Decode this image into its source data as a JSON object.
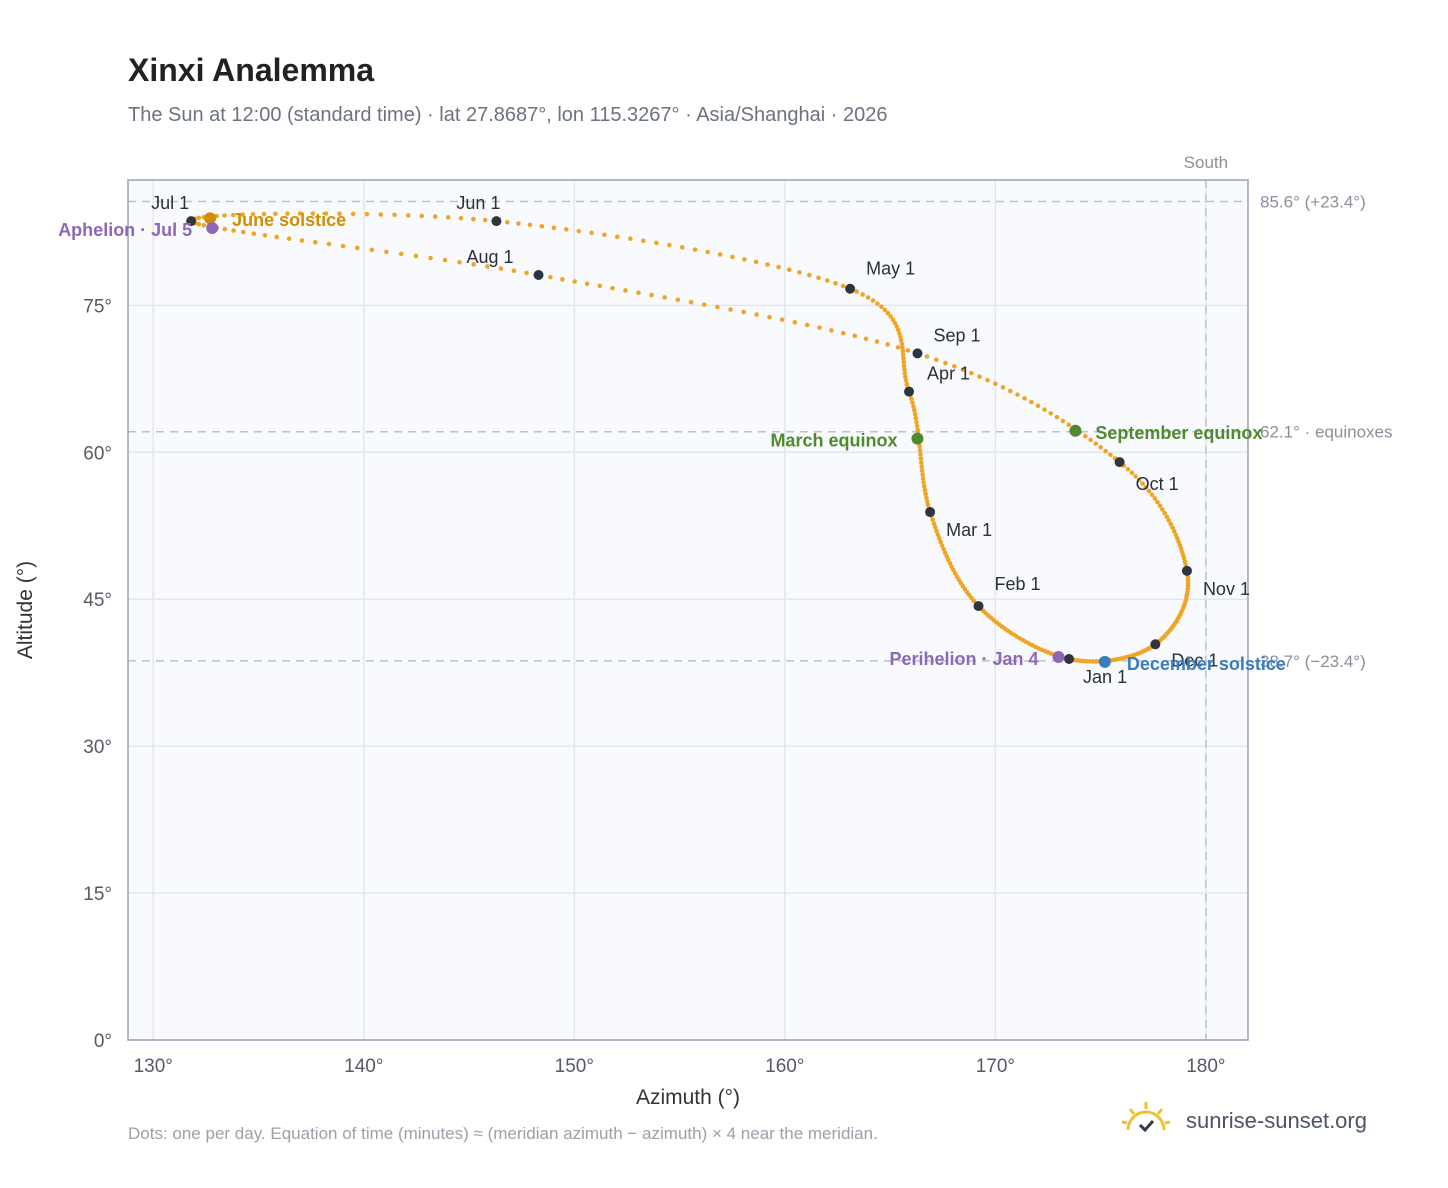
{
  "header": {
    "title": "Xinxi Analemma",
    "subtitle": "The Sun at 12:00 (standard time) · lat 27.8687°, lon 115.3267° · Asia/Shanghai · 2026"
  },
  "footer": {
    "note": "Dots: one per day. Equation of time (minutes) ≈ (meridian azimuth − azimuth) × 4 near the meridian.",
    "brand": "sunrise-sunset.org",
    "brand_icon": "sun-logo-icon"
  },
  "chart_data": {
    "type": "scatter",
    "xlabel": "Azimuth (°)",
    "ylabel": "Altitude (°)",
    "xlim": [
      128.8,
      182
    ],
    "ylim": [
      0,
      87.8
    ],
    "xticks": [
      130,
      140,
      150,
      160,
      170,
      180
    ],
    "yticks": [
      0,
      15,
      30,
      45,
      60,
      75
    ],
    "x_tick_labels": [
      "130°",
      "140°",
      "150°",
      "160°",
      "170°",
      "180°"
    ],
    "y_tick_labels": [
      "0°",
      "15°",
      "30°",
      "45°",
      "60°",
      "75°"
    ],
    "grid": true,
    "south_line": {
      "azimuth": 180,
      "label": "South"
    },
    "reference_lines": [
      {
        "altitude": 85.6,
        "label": "85.6° (+23.4°)"
      },
      {
        "altitude": 62.1,
        "label": "62.1° · equinoxes"
      },
      {
        "altitude": 38.7,
        "label": "38.7° (−23.4°)"
      }
    ],
    "series_color": "#f0a526",
    "month_markers": [
      {
        "label": "Jan 1",
        "azimuth": 173.5,
        "altitude": 38.9
      },
      {
        "label": "Feb 1",
        "azimuth": 169.2,
        "altitude": 44.3
      },
      {
        "label": "Mar 1",
        "azimuth": 166.9,
        "altitude": 53.9
      },
      {
        "label": "Apr 1",
        "azimuth": 165.9,
        "altitude": 66.2
      },
      {
        "label": "May 1",
        "azimuth": 163.1,
        "altitude": 76.7
      },
      {
        "label": "Jun 1",
        "azimuth": 146.3,
        "altitude": 83.6
      },
      {
        "label": "Jul 1",
        "azimuth": 131.8,
        "altitude": 83.6
      },
      {
        "label": "Aug 1",
        "azimuth": 148.3,
        "altitude": 78.1
      },
      {
        "label": "Sep 1",
        "azimuth": 166.3,
        "altitude": 70.1
      },
      {
        "label": "Oct 1",
        "azimuth": 175.9,
        "altitude": 59.0
      },
      {
        "label": "Nov 1",
        "azimuth": 179.1,
        "altitude": 47.9
      },
      {
        "label": "Dec 1",
        "azimuth": 177.6,
        "altitude": 40.4
      }
    ],
    "events": [
      {
        "label": "March equinox",
        "azimuth": 166.3,
        "altitude": 61.4,
        "color": "#4f8a2f"
      },
      {
        "label": "June solstice",
        "azimuth": 132.7,
        "altitude": 83.9,
        "color": "#d18f00"
      },
      {
        "label": "September equinox",
        "azimuth": 173.8,
        "altitude": 62.2,
        "color": "#4f8a2f"
      },
      {
        "label": "December solstice",
        "azimuth": 175.2,
        "altitude": 38.6,
        "color": "#3a7cc0"
      },
      {
        "label": "Aphelion · Jul 5",
        "azimuth": 132.8,
        "altitude": 82.9,
        "color": "#8e67b8"
      },
      {
        "label": "Perihelion · Jan 4",
        "azimuth": 173.0,
        "altitude": 39.1,
        "color": "#8e67b8"
      }
    ]
  }
}
